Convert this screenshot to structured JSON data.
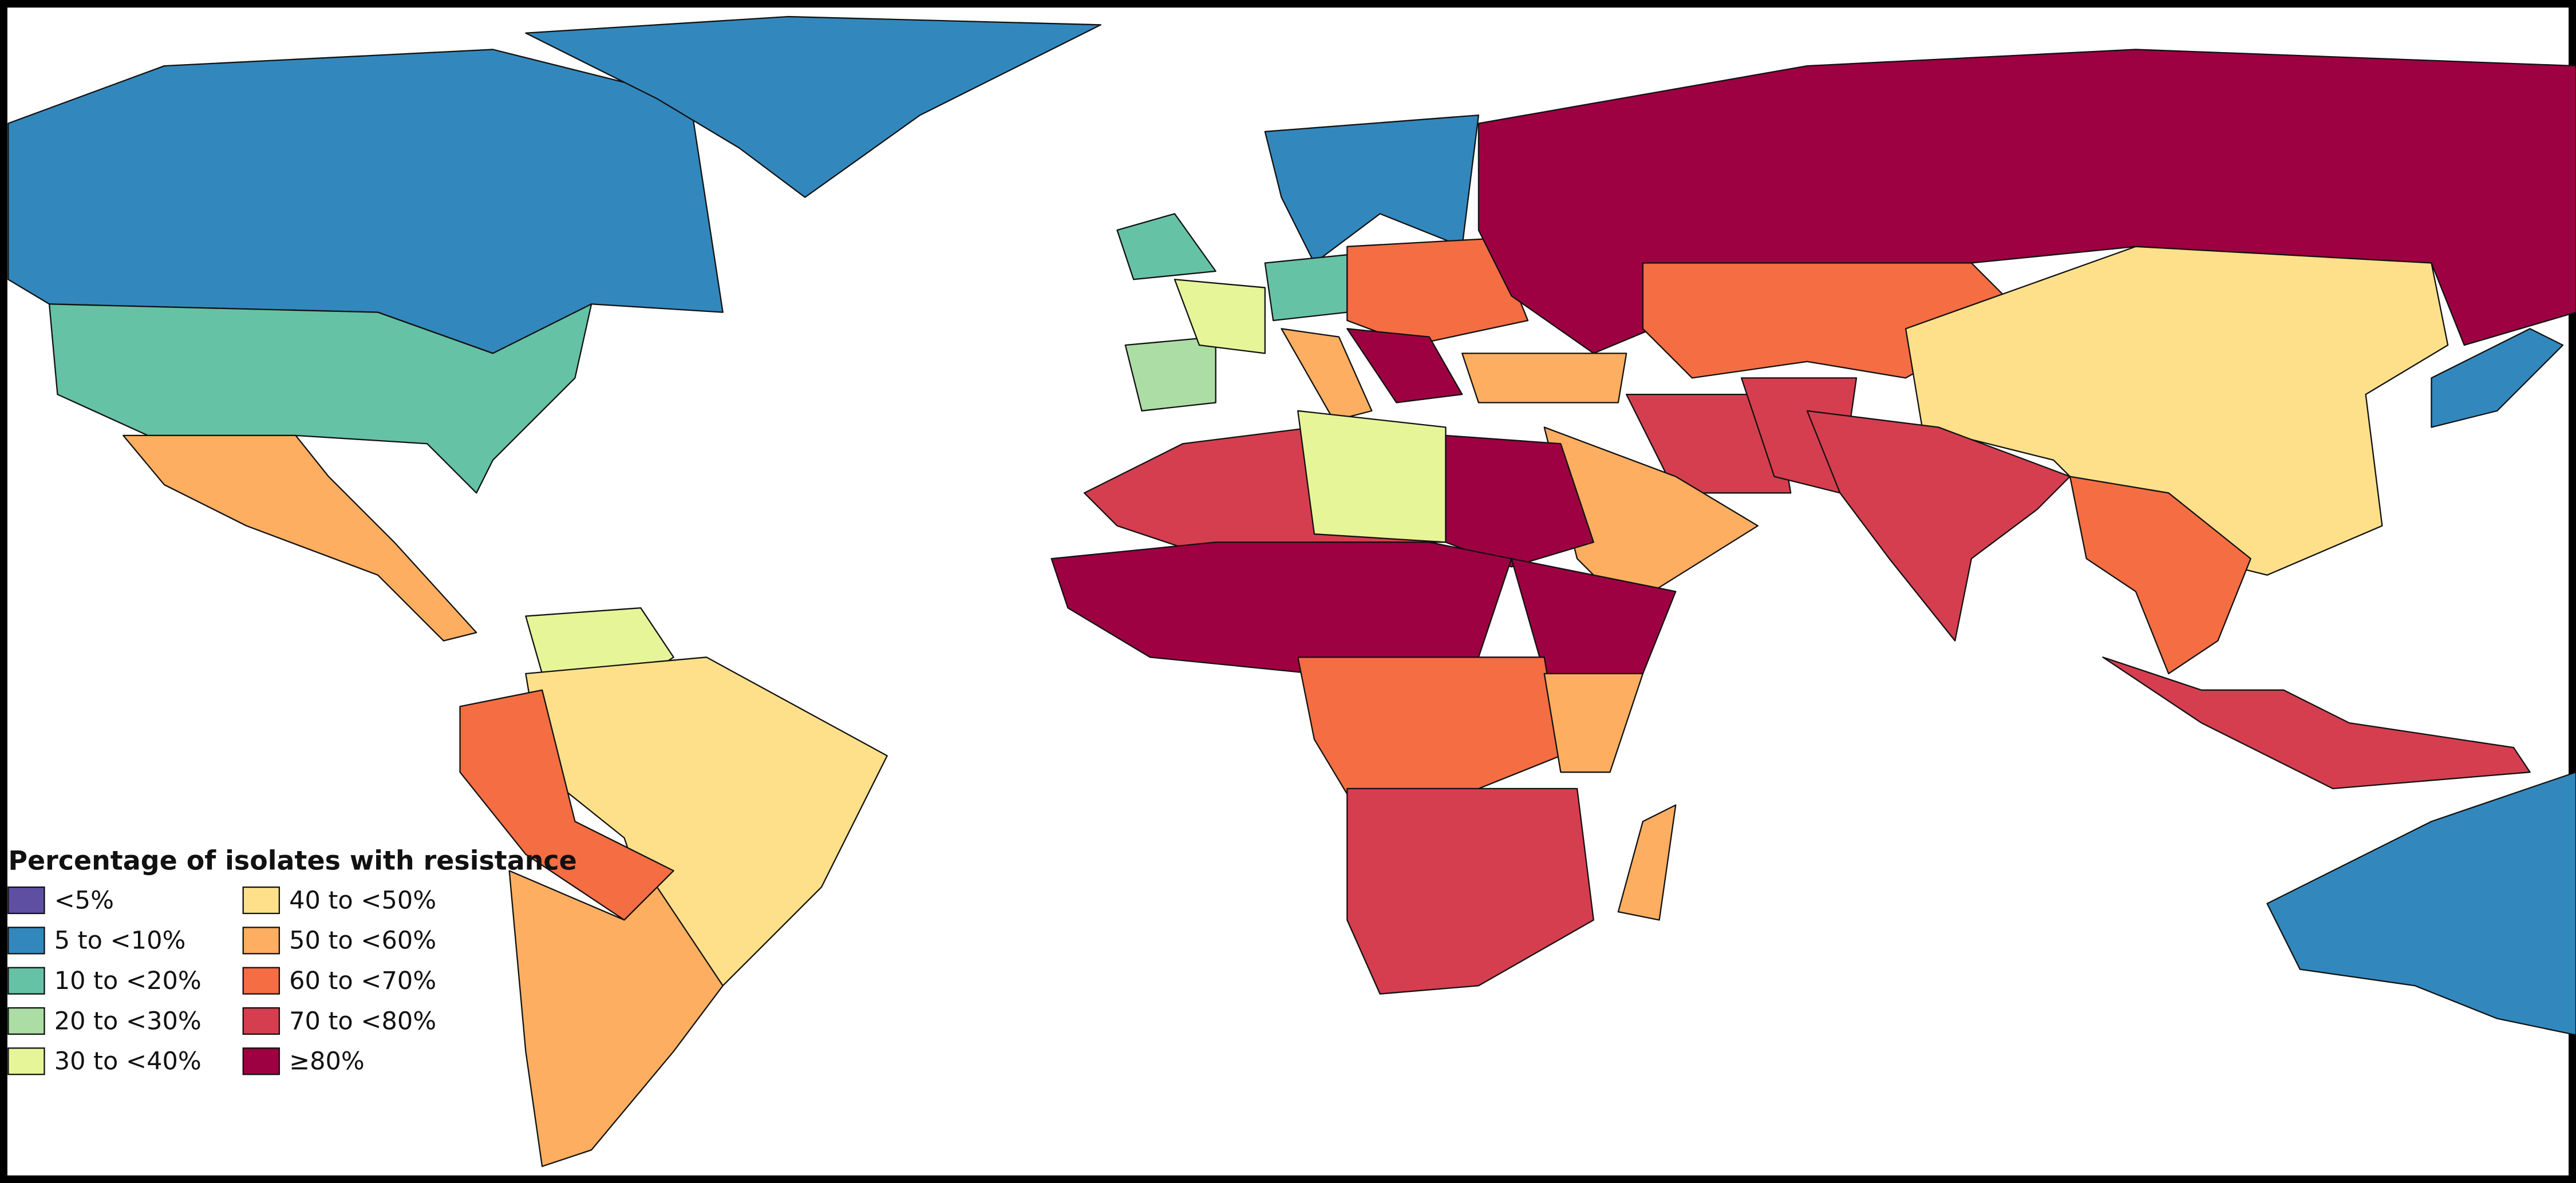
{
  "legend": {
    "title": "Percentage of isolates with resistance",
    "items": [
      {
        "label": "<5%",
        "color": "#5e4fa2"
      },
      {
        "label": "5 to <10%",
        "color": "#3288bd"
      },
      {
        "label": "10 to <20%",
        "color": "#66c2a5"
      },
      {
        "label": "20 to <30%",
        "color": "#abdda4"
      },
      {
        "label": "30 to <40%",
        "color": "#e6f598"
      },
      {
        "label": "40 to <50%",
        "color": "#fee08b"
      },
      {
        "label": "50 to <60%",
        "color": "#fdae61"
      },
      {
        "label": "60 to <70%",
        "color": "#f46d43"
      },
      {
        "label": "70 to <80%",
        "color": "#d53e4f"
      },
      {
        "label": "≥80%",
        "color": "#9e0142"
      }
    ]
  }
}
